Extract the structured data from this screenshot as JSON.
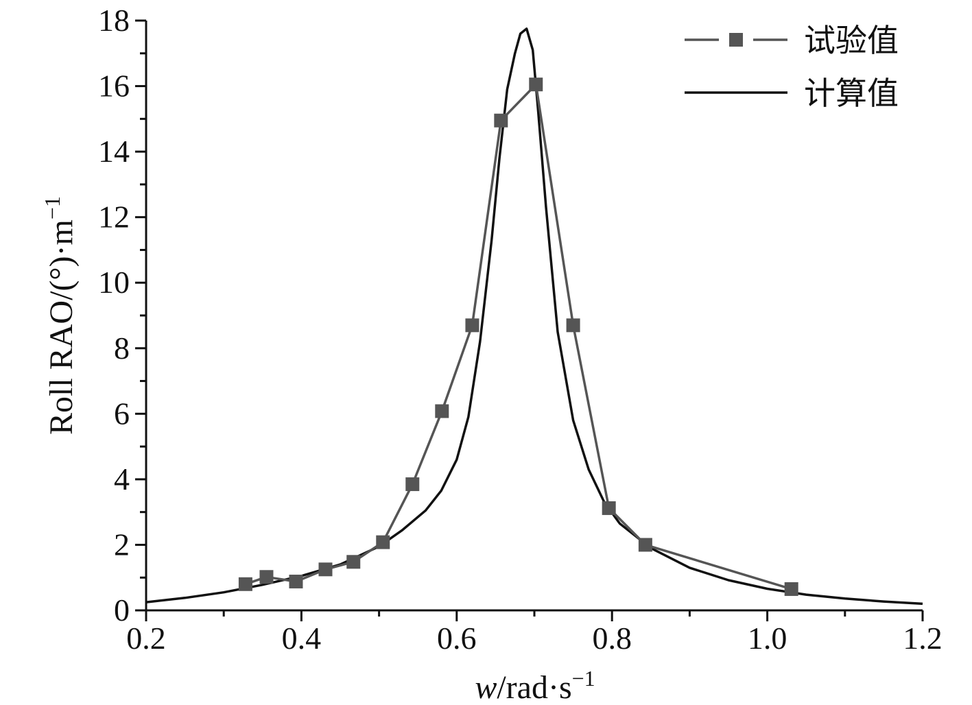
{
  "chart_data": {
    "type": "line",
    "xlabel": {
      "var": "w",
      "unit": "/rad·s",
      "exp": "−1"
    },
    "ylabel": {
      "base": "Roll RAO/(°)·m",
      "exp": "−1"
    },
    "xlim": [
      0.2,
      1.2
    ],
    "ylim": [
      0,
      18
    ],
    "xticks": [
      0.2,
      0.4,
      0.6,
      0.8,
      1.0,
      1.2
    ],
    "xtick_labels": [
      "0.2",
      "0.4",
      "0.6",
      "0.8",
      "1.0",
      "1.2"
    ],
    "yticks": [
      0,
      2,
      4,
      6,
      8,
      10,
      12,
      14,
      16,
      18
    ],
    "ytick_labels": [
      "0",
      "2",
      "4",
      "6",
      "8",
      "10",
      "12",
      "14",
      "16",
      "18"
    ],
    "grid": false,
    "legend_position": "top-right",
    "series": [
      {
        "name": "试验值",
        "color": "#555555",
        "marker": "square",
        "x": [
          0.328,
          0.355,
          0.393,
          0.431,
          0.467,
          0.505,
          0.543,
          0.581,
          0.62,
          0.657,
          0.702,
          0.75,
          0.796,
          0.843,
          1.031
        ],
        "y": [
          0.8,
          1.02,
          0.88,
          1.25,
          1.48,
          2.08,
          3.85,
          6.08,
          8.7,
          14.95,
          16.05,
          8.7,
          3.12,
          2.0,
          0.65
        ]
      },
      {
        "name": "计算值",
        "color": "#111111",
        "marker": "none",
        "x": [
          0.2,
          0.25,
          0.3,
          0.35,
          0.4,
          0.45,
          0.5,
          0.53,
          0.56,
          0.58,
          0.6,
          0.615,
          0.63,
          0.645,
          0.655,
          0.665,
          0.675,
          0.682,
          0.69,
          0.698,
          0.705,
          0.715,
          0.73,
          0.75,
          0.77,
          0.79,
          0.81,
          0.85,
          0.9,
          0.95,
          1.0,
          1.05,
          1.1,
          1.15,
          1.2
        ],
        "y": [
          0.25,
          0.38,
          0.55,
          0.78,
          1.05,
          1.4,
          1.95,
          2.45,
          3.05,
          3.65,
          4.6,
          5.9,
          8.2,
          11.3,
          13.8,
          15.9,
          17.0,
          17.6,
          17.75,
          17.1,
          15.2,
          12.3,
          8.5,
          5.8,
          4.3,
          3.3,
          2.65,
          1.9,
          1.3,
          0.92,
          0.66,
          0.48,
          0.36,
          0.27,
          0.2
        ]
      }
    ]
  }
}
